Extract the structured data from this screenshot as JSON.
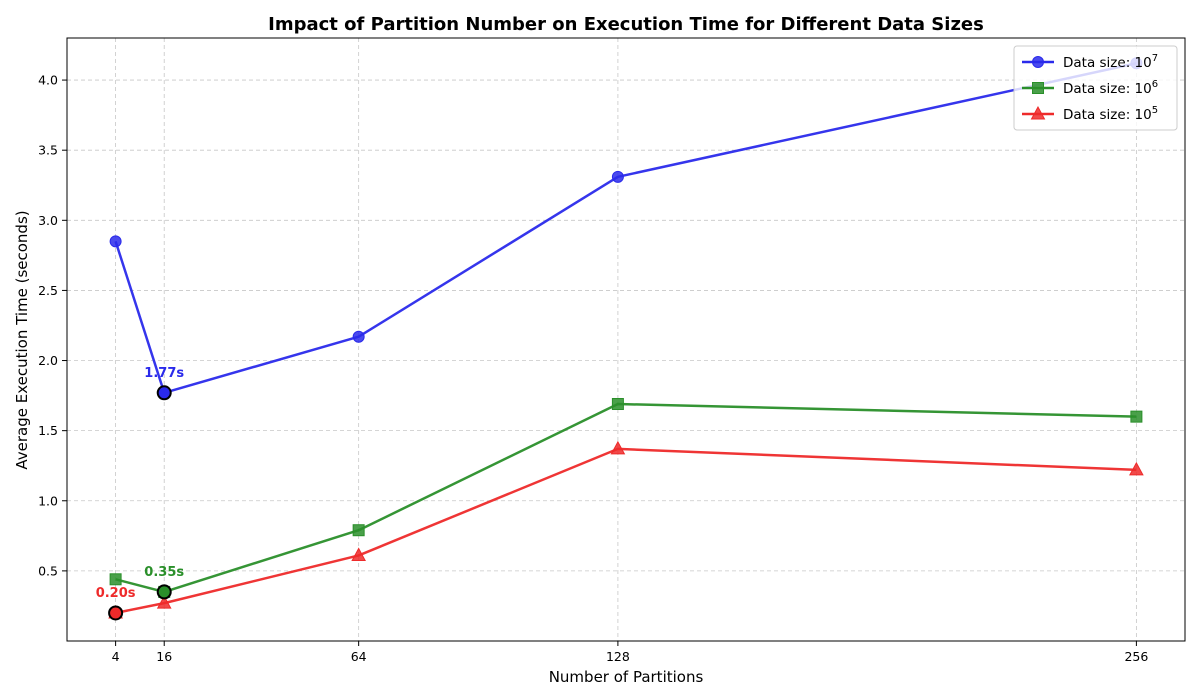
{
  "chart_data": {
    "type": "line",
    "title": "Impact of Partition Number on Execution Time for Different Data Sizes",
    "xlabel": "Number of Partitions",
    "ylabel": "Average Execution Time (seconds)",
    "x": [
      4,
      16,
      64,
      128,
      256
    ],
    "x_ticks": [
      4,
      16,
      64,
      128,
      256
    ],
    "xlim": [
      -8,
      268
    ],
    "y_ticks": [
      0.5,
      1.0,
      1.5,
      2.0,
      2.5,
      3.0,
      3.5,
      4.0
    ],
    "y_tick_labels": [
      "0.5",
      "1.0",
      "1.5",
      "2.0",
      "2.5",
      "3.0",
      "3.5",
      "4.0"
    ],
    "ylim": [
      0,
      4.3
    ],
    "grid": true,
    "legend_position": "top-right",
    "series": [
      {
        "name_text": "Data size: 10",
        "name_exp": "7",
        "values": [
          2.85,
          1.77,
          2.17,
          3.31,
          4.12
        ],
        "color": "#2a2aeb",
        "marker": "circle",
        "best_index": 1,
        "best_label": "1.77s"
      },
      {
        "name_text": "Data size: 10",
        "name_exp": "6",
        "values": [
          0.44,
          0.35,
          0.79,
          1.69,
          1.6
        ],
        "color": "#2a8f2a",
        "marker": "square",
        "best_index": 1,
        "best_label": "0.35s"
      },
      {
        "name_text": "Data size: 10",
        "name_exp": "5",
        "values": [
          0.2,
          0.27,
          0.61,
          1.37,
          1.22
        ],
        "color": "#ee2a2a",
        "marker": "triangle",
        "best_index": 0,
        "best_label": "0.20s"
      }
    ]
  }
}
